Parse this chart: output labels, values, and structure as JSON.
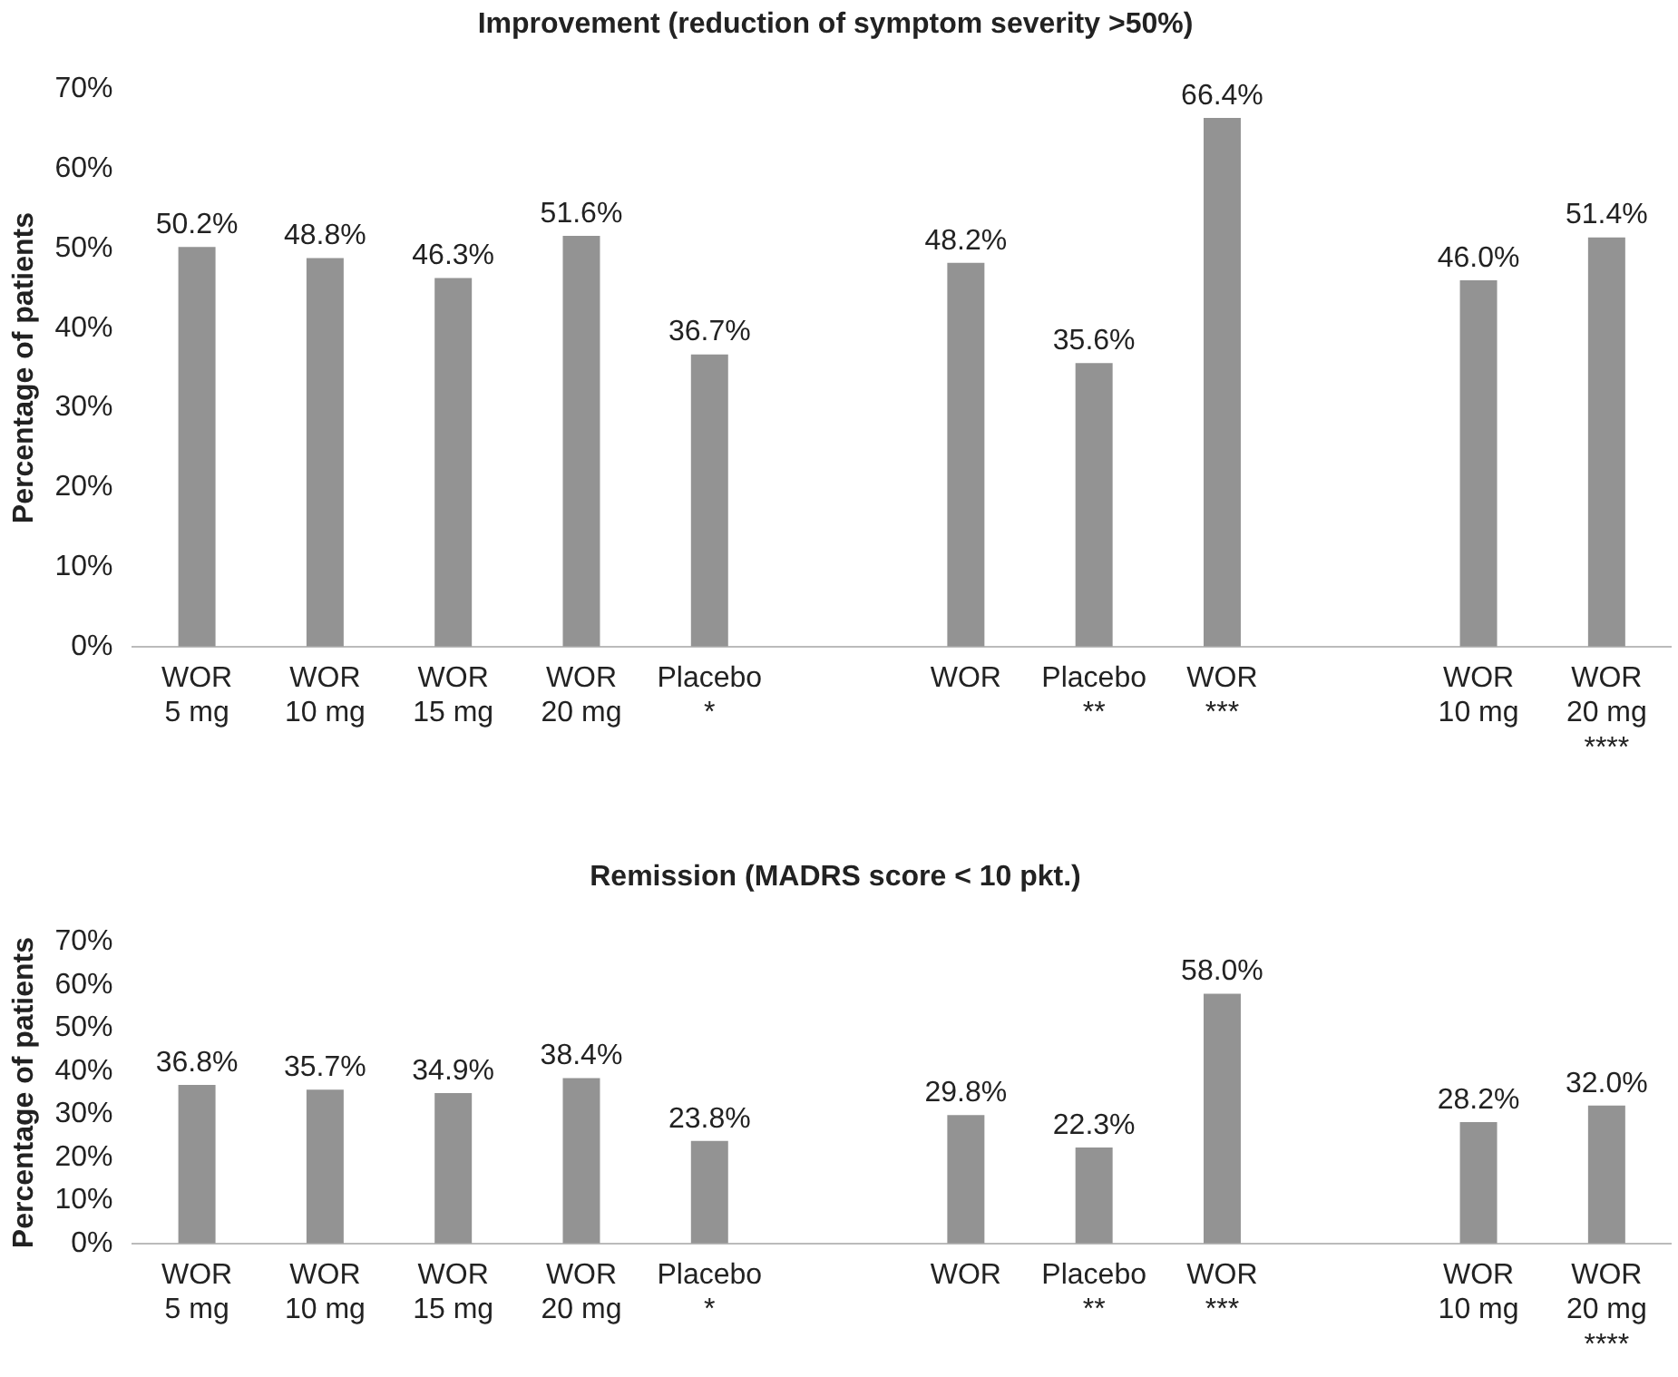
{
  "chart_data": [
    {
      "type": "bar",
      "title": "Improvement (reduction of symptom severity >50%)",
      "ylabel": "Percentage of patients",
      "categories": [
        "WOR\n5 mg",
        "WOR\n10 mg",
        "WOR\n15 mg",
        "WOR\n20 mg",
        "Placebo\n*",
        null,
        "WOR",
        "Placebo\n**",
        "WOR\n***",
        null,
        "WOR\n10 mg",
        "WOR\n20 mg\n****"
      ],
      "values": [
        50.2,
        48.8,
        46.3,
        51.6,
        36.7,
        null,
        48.2,
        35.6,
        66.4,
        null,
        46.0,
        51.4
      ],
      "value_labels": [
        "50.2%",
        "48.8%",
        "46.3%",
        "51.6%",
        "36.7%",
        null,
        "48.2%",
        "35.6%",
        "66.4%",
        null,
        "46.0%",
        "51.4%"
      ],
      "color": "#939393",
      "ylim": [
        0,
        70
      ],
      "yticks": [
        {
          "value": 0,
          "label": "0%"
        },
        {
          "value": 10,
          "label": "10%"
        },
        {
          "value": 20,
          "label": "20%"
        },
        {
          "value": 30,
          "label": "30%"
        },
        {
          "value": 40,
          "label": "40%"
        },
        {
          "value": 50,
          "label": "50%"
        },
        {
          "value": 60,
          "label": "60%"
        },
        {
          "value": 70,
          "label": "70%"
        }
      ],
      "grid": false,
      "legend": false
    },
    {
      "type": "bar",
      "title": "Remission (MADRS score < 10 pkt.)",
      "ylabel": "Percentage of patients",
      "categories": [
        "WOR\n5 mg",
        "WOR\n10 mg",
        "WOR\n15 mg",
        "WOR\n20 mg",
        "Placebo\n*",
        null,
        "WOR",
        "Placebo\n**",
        "WOR\n***",
        null,
        "WOR\n10 mg",
        "WOR\n20 mg\n****"
      ],
      "values": [
        36.8,
        35.7,
        34.9,
        38.4,
        23.8,
        null,
        29.8,
        22.3,
        58.0,
        null,
        28.2,
        32.0
      ],
      "value_labels": [
        "36.8%",
        "35.7%",
        "34.9%",
        "38.4%",
        "23.8%",
        null,
        "29.8%",
        "22.3%",
        "58.0%",
        null,
        "28.2%",
        "32.0%"
      ],
      "color": "#939393",
      "ylim": [
        0,
        70
      ],
      "yticks": [
        {
          "value": 0,
          "label": "0%"
        },
        {
          "value": 10,
          "label": "10%"
        },
        {
          "value": 20,
          "label": "20%"
        },
        {
          "value": 30,
          "label": "30%"
        },
        {
          "value": 40,
          "label": "40%"
        },
        {
          "value": 50,
          "label": "50%"
        },
        {
          "value": 60,
          "label": "60%"
        },
        {
          "value": 70,
          "label": "70%"
        }
      ],
      "grid": false,
      "legend": false
    }
  ]
}
